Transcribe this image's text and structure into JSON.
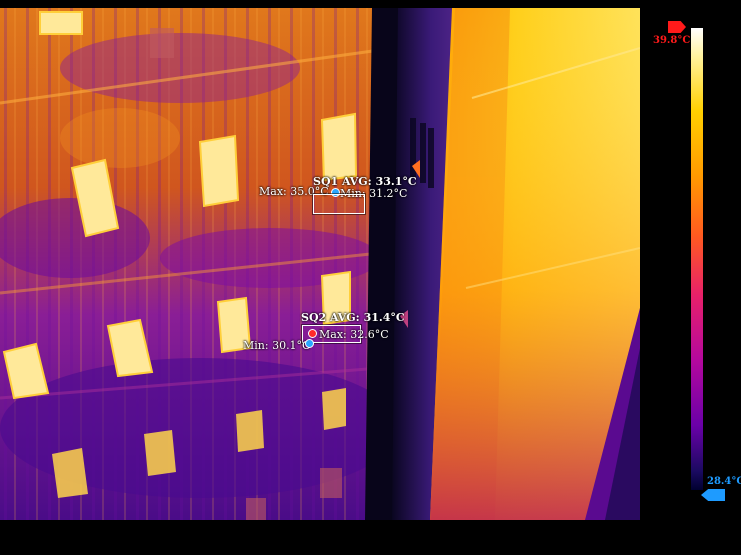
{
  "sq1": {
    "avg_label": "SQ1 AVG: 33.1°C",
    "max_label": "Max: 35.0°C",
    "min_label": "Min: 31.2°C"
  },
  "sq2": {
    "avg_label": "SQ2 AVG: 31.4°C",
    "max_label": "Max: 32.6°C",
    "min_label": "Min: 30.1°C"
  },
  "scale": {
    "max_label": "39.8°C",
    "min_label": "28.4°C",
    "max_color": "#ff1a1a",
    "min_color": "#1e9bff"
  },
  "colors": {
    "max_marker": "#ff2a2a",
    "min_marker": "#2aa7ff",
    "roi_border": "#ffffff"
  }
}
